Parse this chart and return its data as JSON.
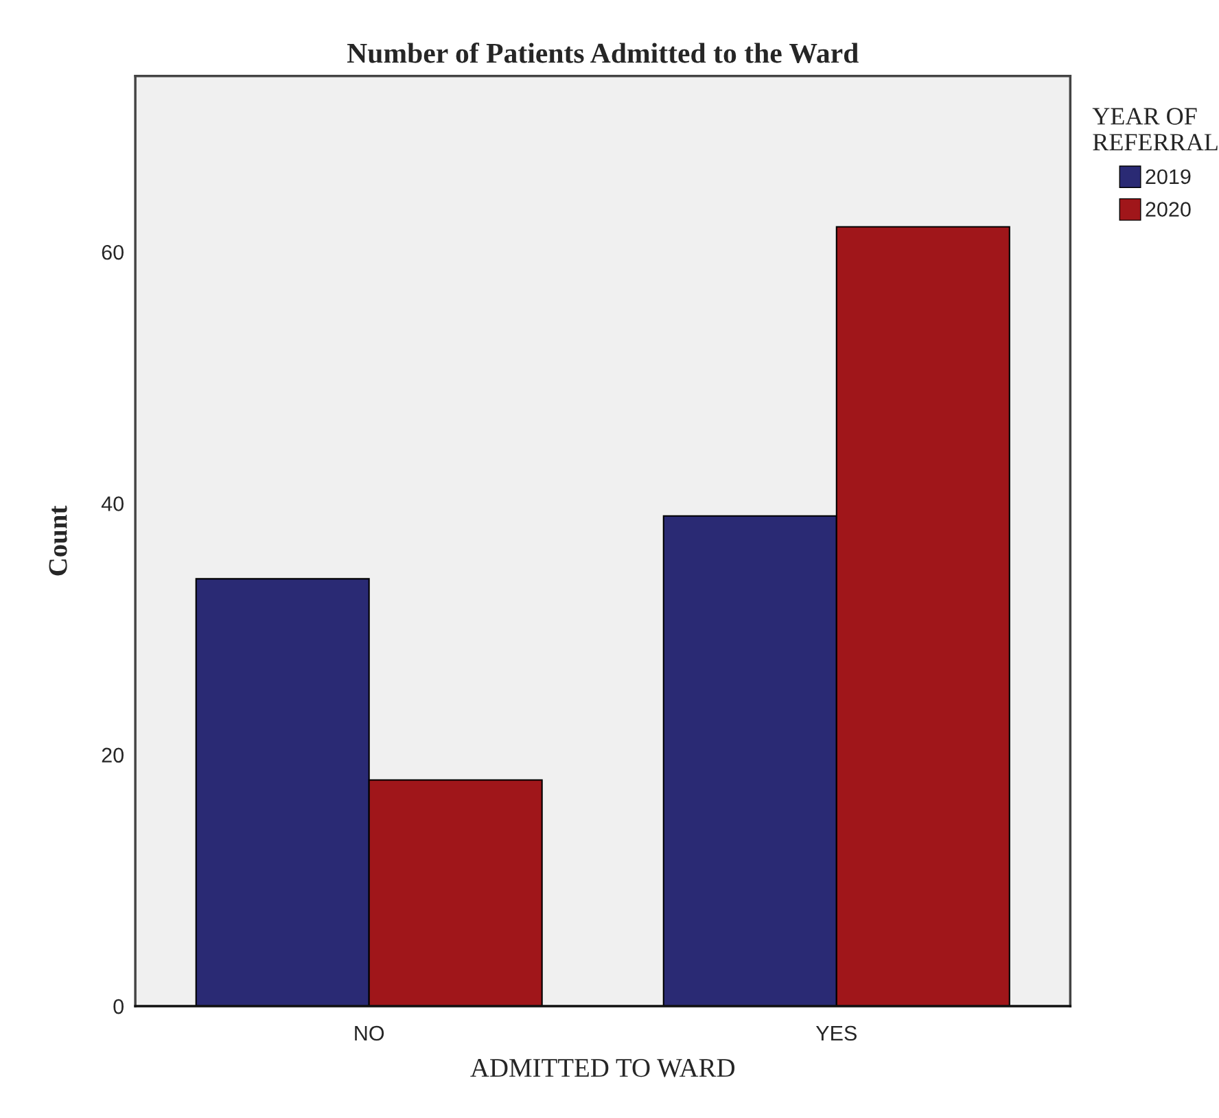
{
  "chart_data": {
    "type": "bar",
    "title": "Number of Patients Admitted to the Ward",
    "xlabel": "ADMITTED TO WARD",
    "ylabel": "Count",
    "legend_title": "YEAR OF\nREFERRAL",
    "categories": [
      "NO",
      "YES"
    ],
    "series": [
      {
        "name": "2019",
        "color": "#2a2a74",
        "values": [
          34,
          39
        ]
      },
      {
        "name": "2020",
        "color": "#a0161a",
        "values": [
          18,
          62
        ]
      }
    ],
    "ylim": [
      0,
      74
    ],
    "yticks": [
      0,
      20,
      40,
      60
    ],
    "grid": false,
    "legend": "right"
  }
}
